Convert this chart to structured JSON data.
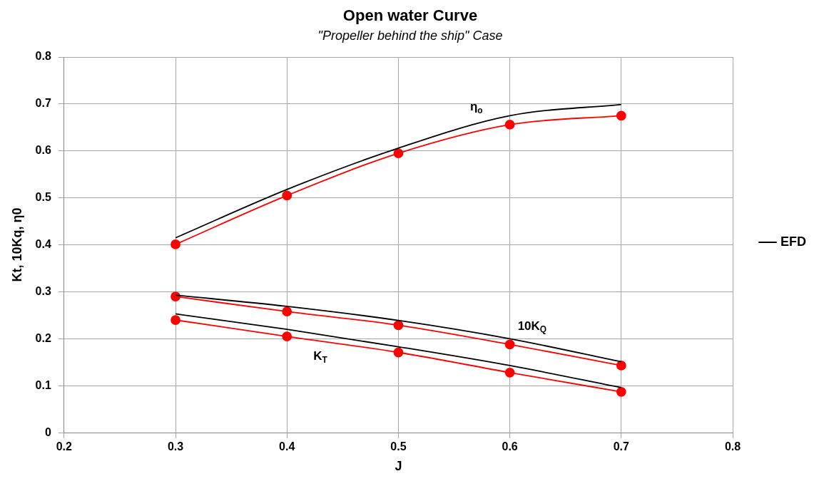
{
  "chart_data": {
    "type": "line",
    "title": "Open water Curve",
    "subtitle": "\"Propeller behind the ship\" Case",
    "xlabel": "J",
    "ylabel": "Kt, 10Kq, η0",
    "x": [
      0.3,
      0.4,
      0.5,
      0.6,
      0.7
    ],
    "series": [
      {
        "name": "EFD",
        "color": "#000000",
        "marker": "none",
        "values": [
          0.415,
          0.518,
          0.606,
          0.675,
          0.699
        ]
      },
      {
        "color": "#ff0000",
        "marker": "circle",
        "values": [
          0.401,
          0.505,
          0.595,
          0.656,
          0.675
        ]
      },
      {
        "color": "#000000",
        "marker": "none",
        "values": [
          0.293,
          0.269,
          0.239,
          0.2,
          0.151
        ]
      },
      {
        "color": "#ff0000",
        "marker": "circle",
        "values": [
          0.29,
          0.258,
          0.229,
          0.188,
          0.143
        ]
      },
      {
        "color": "#000000",
        "marker": "none",
        "values": [
          0.253,
          0.22,
          0.183,
          0.143,
          0.096
        ]
      },
      {
        "color": "#ff0000",
        "marker": "circle",
        "values": [
          0.24,
          0.205,
          0.171,
          0.128,
          0.087
        ]
      }
    ],
    "annotations": [
      {
        "text": "η$_{o}$",
        "x": 0.57,
        "y": 0.66
      },
      {
        "text": "10K$_{Q}$",
        "x": 0.62,
        "y": 0.193
      },
      {
        "text": "K$_{T}$",
        "x": 0.43,
        "y": 0.195
      }
    ],
    "xlim": [
      0.2,
      0.8
    ],
    "xticks": [
      0.2,
      0.3,
      0.4,
      0.5,
      0.6,
      0.7,
      0.8
    ],
    "ylim": [
      0,
      0.8
    ],
    "yticks": [
      0,
      0.1,
      0.2,
      0.3,
      0.4,
      0.5,
      0.6,
      0.7,
      0.8
    ],
    "grid": true,
    "legend": "right",
    "line_style": "solid"
  }
}
